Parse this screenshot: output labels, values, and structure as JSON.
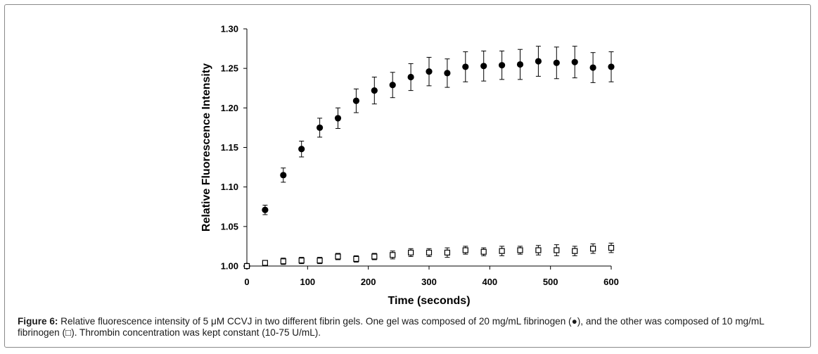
{
  "chart_data": {
    "type": "scatter",
    "xlabel": "Time (seconds)",
    "ylabel": "Relative Fluorescence Intensity",
    "xlim": [
      0,
      600
    ],
    "ylim": [
      1.0,
      1.3
    ],
    "x_ticks": [
      "0",
      "100",
      "200",
      "300",
      "400",
      "500",
      "600"
    ],
    "x_tick_values": [
      0,
      100,
      200,
      300,
      400,
      500,
      600
    ],
    "y_ticks": [
      "1.00",
      "1.05",
      "1.10",
      "1.15",
      "1.20",
      "1.25",
      "1.30"
    ],
    "y_tick_values": [
      1.0,
      1.05,
      1.1,
      1.15,
      1.2,
      1.25,
      1.3
    ],
    "grid": false,
    "series": [
      {
        "name": "20 mg/mL fibrinogen",
        "marker": "filled-circle",
        "color": "#000000",
        "x": [
          0,
          30,
          60,
          90,
          120,
          150,
          180,
          210,
          240,
          270,
          300,
          330,
          360,
          390,
          420,
          450,
          480,
          510,
          540,
          570,
          600
        ],
        "y": [
          1.0,
          1.071,
          1.115,
          1.148,
          1.175,
          1.187,
          1.209,
          1.222,
          1.229,
          1.239,
          1.246,
          1.244,
          1.252,
          1.253,
          1.254,
          1.255,
          1.259,
          1.257,
          1.258,
          1.251,
          1.252
        ],
        "err": [
          0.0,
          0.006,
          0.009,
          0.01,
          0.012,
          0.013,
          0.015,
          0.017,
          0.016,
          0.017,
          0.018,
          0.018,
          0.019,
          0.019,
          0.018,
          0.019,
          0.019,
          0.02,
          0.02,
          0.019,
          0.019
        ]
      },
      {
        "name": "10 mg/mL fibrinogen",
        "marker": "open-square",
        "color": "#000000",
        "x": [
          0,
          30,
          60,
          90,
          120,
          150,
          180,
          210,
          240,
          270,
          300,
          330,
          360,
          390,
          420,
          450,
          480,
          510,
          540,
          570,
          600
        ],
        "y": [
          1.0,
          1.004,
          1.006,
          1.007,
          1.007,
          1.012,
          1.009,
          1.012,
          1.014,
          1.017,
          1.017,
          1.017,
          1.02,
          1.018,
          1.019,
          1.02,
          1.02,
          1.02,
          1.019,
          1.022,
          1.023
        ],
        "err": [
          0.001,
          0.003,
          0.004,
          0.004,
          0.004,
          0.004,
          0.004,
          0.004,
          0.005,
          0.005,
          0.005,
          0.006,
          0.005,
          0.005,
          0.006,
          0.005,
          0.006,
          0.007,
          0.006,
          0.006,
          0.006
        ]
      }
    ]
  },
  "caption": {
    "label": "Figure 6:",
    "text": " Relative fluorescence intensity of 5 μM CCVJ in two different fibrin gels. One gel was composed of 20 mg/mL fibrinogen (●), and the other was composed of 10 mg/mL fibrinogen (□). Thrombin concentration was kept constant (10-75 U/mL)."
  }
}
